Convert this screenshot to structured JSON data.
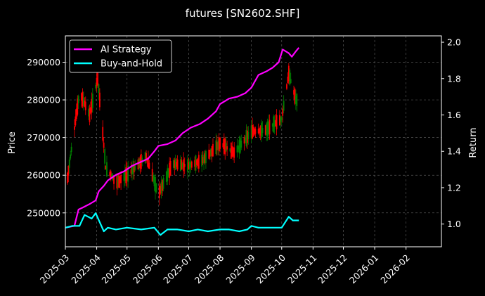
{
  "chart_data": {
    "type": "line",
    "title": "futures [SN2602.SHF]",
    "xlabel": "",
    "ylabel_left": "Price",
    "ylabel_right": "Return",
    "background": "#000000",
    "grid": true,
    "legend_position": "upper-left",
    "xlim": [
      "2025-03-01",
      "2026-03-08"
    ],
    "ylim_left": [
      241000,
      297000
    ],
    "ylim_right": [
      0.875,
      2.035
    ],
    "x_ticks": [
      "2025-03",
      "2025-04",
      "2025-05",
      "2025-06",
      "2025-07",
      "2025-08",
      "2025-09",
      "2025-10",
      "2025-11",
      "2025-12",
      "2026-01",
      "2026-02"
    ],
    "y_ticks_left": [
      "250000",
      "260000",
      "270000",
      "280000",
      "290000"
    ],
    "y_ticks_right": [
      "1.0",
      "1.2",
      "1.4",
      "1.6",
      "1.8",
      "2.0"
    ],
    "colors": {
      "strategy": "#ff00ff",
      "buy_hold": "#00ffff",
      "candle_up": "#008000",
      "candle_down": "#ff0000",
      "grid": "#555555"
    },
    "series": [
      {
        "name": "AI Strategy",
        "axis": "right",
        "x": [
          "2025-03-01",
          "2025-03-10",
          "2025-03-14",
          "2025-03-18",
          "2025-03-25",
          "2025-03-31",
          "2025-04-03",
          "2025-04-08",
          "2025-04-12",
          "2025-04-20",
          "2025-04-28",
          "2025-05-06",
          "2025-05-14",
          "2025-05-22",
          "2025-05-28",
          "2025-06-01",
          "2025-06-10",
          "2025-06-18",
          "2025-06-25",
          "2025-07-03",
          "2025-07-12",
          "2025-07-20",
          "2025-07-28",
          "2025-08-01",
          "2025-08-10",
          "2025-08-18",
          "2025-08-26",
          "2025-09-01",
          "2025-09-08",
          "2025-09-16",
          "2025-09-22",
          "2025-09-28",
          "2025-10-02",
          "2025-10-08",
          "2025-10-11",
          "2025-10-15",
          "2025-10-18"
        ],
        "values": [
          0.98,
          0.99,
          1.08,
          1.09,
          1.11,
          1.13,
          1.18,
          1.21,
          1.24,
          1.27,
          1.29,
          1.32,
          1.34,
          1.36,
          1.4,
          1.43,
          1.44,
          1.46,
          1.5,
          1.53,
          1.55,
          1.58,
          1.62,
          1.66,
          1.69,
          1.7,
          1.72,
          1.75,
          1.82,
          1.84,
          1.86,
          1.89,
          1.96,
          1.94,
          1.92,
          1.95,
          1.97
        ]
      },
      {
        "name": "Buy-and-Hold",
        "axis": "right",
        "x": [
          "2025-03-01",
          "2025-03-08",
          "2025-03-15",
          "2025-03-20",
          "2025-03-27",
          "2025-03-31",
          "2025-04-04",
          "2025-04-08",
          "2025-04-12",
          "2025-04-20",
          "2025-05-01",
          "2025-05-15",
          "2025-05-28",
          "2025-06-03",
          "2025-06-10",
          "2025-06-20",
          "2025-07-01",
          "2025-07-10",
          "2025-07-20",
          "2025-08-01",
          "2025-08-10",
          "2025-08-20",
          "2025-08-28",
          "2025-09-01",
          "2025-09-08",
          "2025-09-15",
          "2025-09-22",
          "2025-10-01",
          "2025-10-08",
          "2025-10-12",
          "2025-10-18"
        ],
        "values": [
          0.98,
          0.99,
          0.99,
          1.05,
          1.03,
          1.06,
          1.01,
          0.96,
          0.98,
          0.97,
          0.98,
          0.97,
          0.98,
          0.94,
          0.97,
          0.97,
          0.96,
          0.97,
          0.96,
          0.97,
          0.97,
          0.96,
          0.97,
          0.99,
          0.98,
          0.98,
          0.98,
          0.98,
          1.04,
          1.02,
          1.02
        ]
      }
    ]
  }
}
